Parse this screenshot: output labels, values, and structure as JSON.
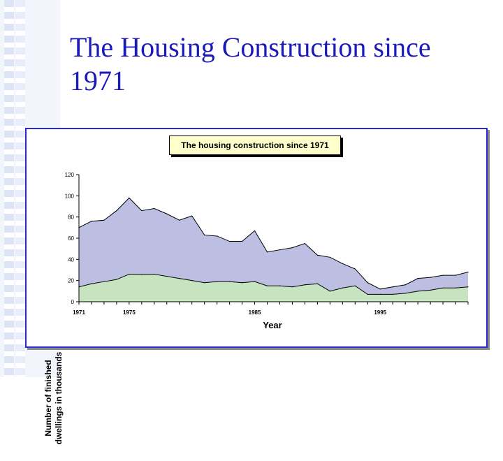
{
  "slide": {
    "title": "The Housing Construction since 1971"
  },
  "chart_data": {
    "type": "area",
    "title": "The housing construction since 1971",
    "xlabel": "Year",
    "ylabel": [
      "Number of finished",
      "dwellings in thousands"
    ],
    "ylim": [
      0,
      120
    ],
    "xlim": [
      1971,
      2002
    ],
    "yticks": [
      0,
      20,
      40,
      60,
      80,
      100,
      120
    ],
    "xticks": [
      1971,
      1975,
      1985,
      1995
    ],
    "stacked": false,
    "x": [
      1971,
      1972,
      1973,
      1974,
      1975,
      1976,
      1977,
      1978,
      1979,
      1980,
      1981,
      1982,
      1983,
      1984,
      1985,
      1986,
      1987,
      1988,
      1989,
      1990,
      1991,
      1992,
      1993,
      1994,
      1995,
      1996,
      1997,
      1998,
      1999,
      2000,
      2001,
      2002
    ],
    "series": [
      {
        "color": "#bcbfe2",
        "values": [
          70,
          76,
          77,
          86,
          98,
          86,
          88,
          83,
          77,
          81,
          63,
          62,
          57,
          57,
          67,
          47,
          49,
          51,
          55,
          44,
          42,
          36,
          31,
          18,
          12,
          14,
          16,
          22,
          23,
          25,
          25,
          28
        ]
      },
      {
        "color": "#c6e4c0",
        "values": [
          14,
          17,
          19,
          21,
          26,
          26,
          26,
          24,
          22,
          20,
          18,
          19,
          19,
          18,
          19,
          15,
          15,
          14,
          16,
          17,
          10,
          13,
          15,
          7,
          7,
          7,
          8,
          10,
          11,
          13,
          13,
          14
        ]
      }
    ]
  }
}
